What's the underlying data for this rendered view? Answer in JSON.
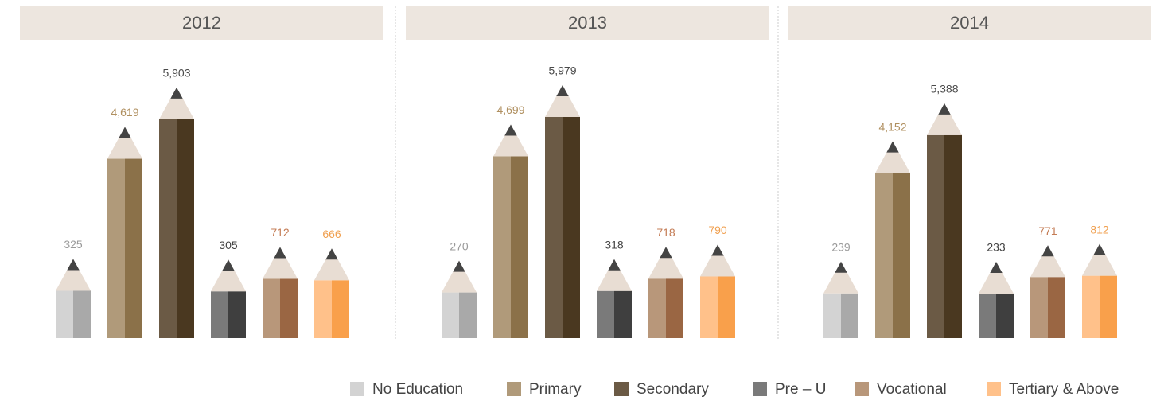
{
  "legend": [
    {
      "name": "No Education",
      "color": "#d3d3d3",
      "dark": "#a9a9a9",
      "label_color": "#9a9a9a"
    },
    {
      "name": "Primary",
      "color": "#b09a7a",
      "dark": "#8b7149",
      "label_color": "#b09060"
    },
    {
      "name": "Secondary",
      "color": "#6b5a45",
      "dark": "#4a3820",
      "label_color": "#4a4a4a"
    },
    {
      "name": "Pre – U",
      "color": "#7a7a7a",
      "dark": "#3f3f3f",
      "label_color": "#444444"
    },
    {
      "name": "Vocational",
      "color": "#b8977a",
      "dark": "#9a6643",
      "label_color": "#c47c55"
    },
    {
      "name": "Tertiary & Above",
      "color": "#ffc18a",
      "dark": "#f9a04b",
      "label_color": "#f0a050"
    }
  ],
  "chart_data": [
    {
      "type": "bar",
      "title": "2012",
      "values": [
        325,
        4619,
        5903,
        305,
        712,
        666
      ],
      "value_labels": [
        "325",
        "4,619",
        "5,903",
        "305",
        "712",
        "666"
      ]
    },
    {
      "type": "bar",
      "title": "2013",
      "values": [
        270,
        4699,
        5979,
        318,
        718,
        790
      ],
      "value_labels": [
        "270",
        "4,699",
        "5,979",
        "318",
        "718",
        "790"
      ]
    },
    {
      "type": "bar",
      "title": "2014",
      "values": [
        239,
        4152,
        5388,
        233,
        771,
        812
      ],
      "value_labels": [
        "239",
        "4,152",
        "5,388",
        "233",
        "771",
        "812"
      ]
    }
  ]
}
